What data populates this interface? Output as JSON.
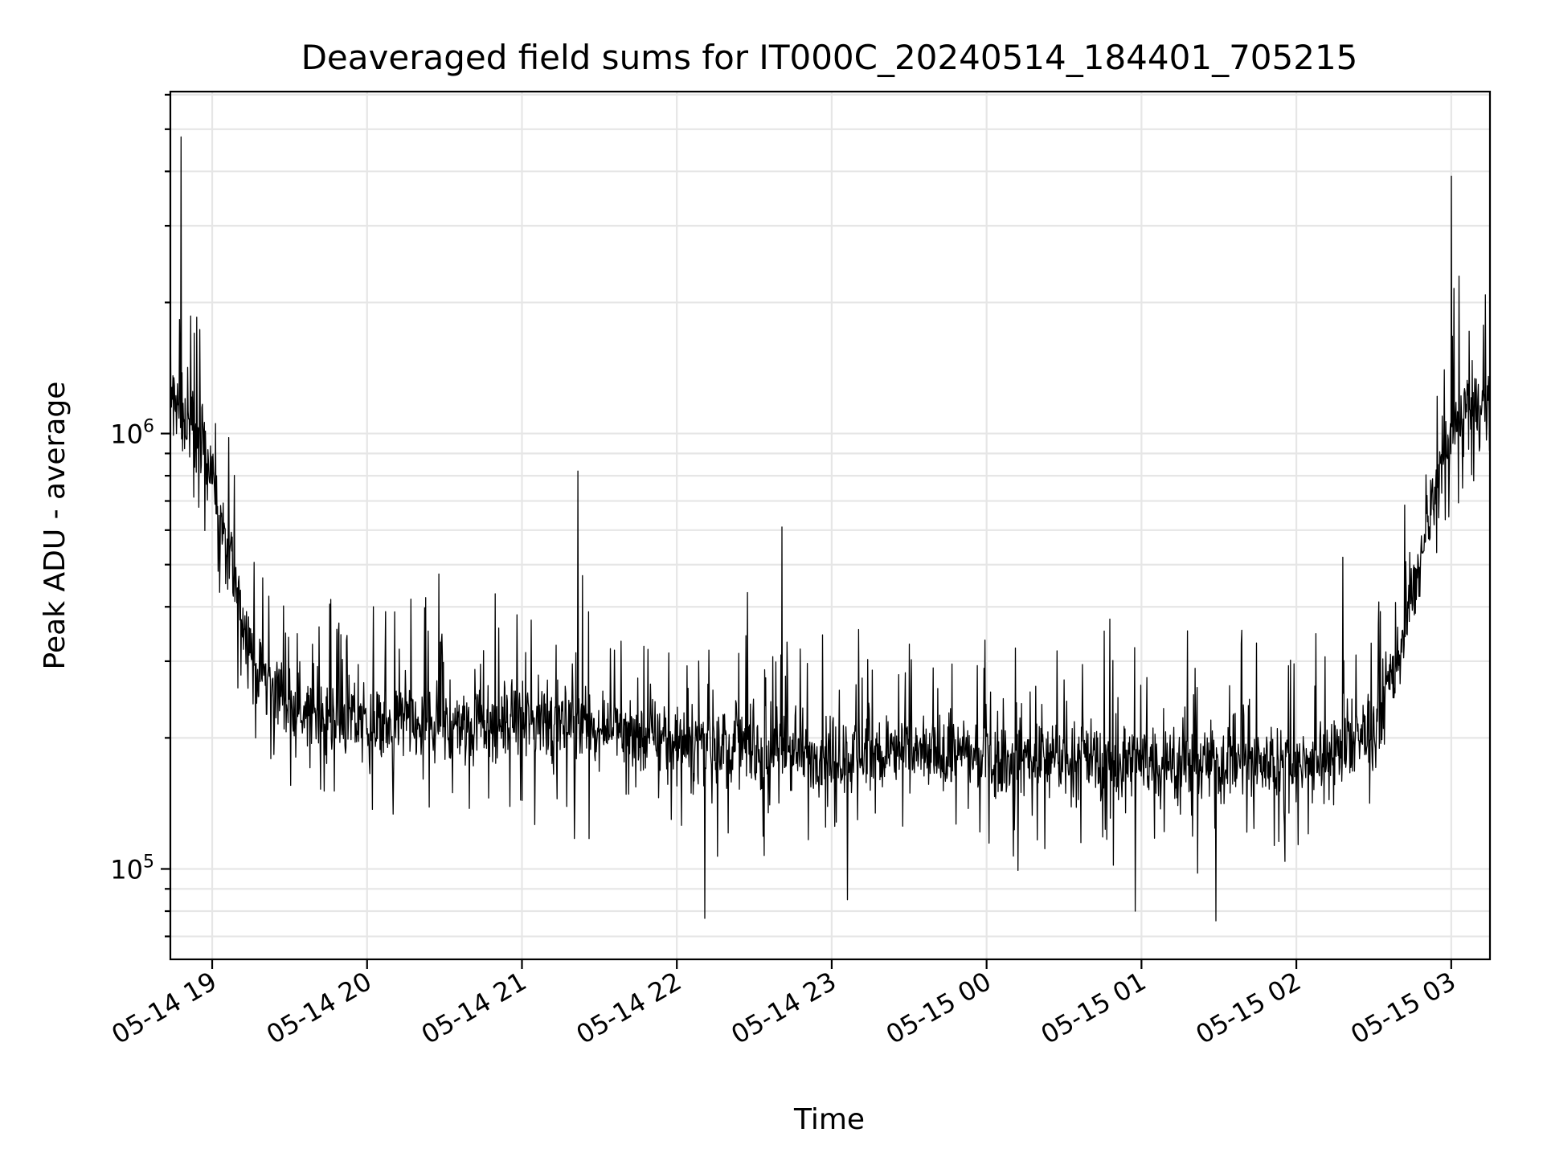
{
  "chart_data": {
    "type": "line",
    "title": "Deaveraged field sums for IT000C_20240514_184401_705215",
    "xlabel": "Time",
    "ylabel": "Peak ADU - average",
    "yscale": "log",
    "grid": true,
    "legend": "none",
    "ylim": [
      62000,
      6100000
    ],
    "xlim_hours": [
      -0.27,
      8.25
    ],
    "x_ticks": [
      {
        "label": "05-14 19",
        "hours": 0
      },
      {
        "label": "05-14 20",
        "hours": 1
      },
      {
        "label": "05-14 21",
        "hours": 2
      },
      {
        "label": "05-14 22",
        "hours": 3
      },
      {
        "label": "05-14 23",
        "hours": 4
      },
      {
        "label": "05-15 00",
        "hours": 5
      },
      {
        "label": "05-15 01",
        "hours": 6
      },
      {
        "label": "05-15 02",
        "hours": 7
      },
      {
        "label": "05-15 03",
        "hours": 8
      }
    ],
    "y_ticks": [
      {
        "base": "10",
        "exp": "5",
        "value": 100000
      },
      {
        "base": "10",
        "exp": "6",
        "value": 1000000
      }
    ],
    "series": [
      {
        "name": "deaveraged field sum",
        "color": "#000000",
        "trend_hours": [
          -0.27,
          -0.15,
          -0.05,
          0.0,
          0.1,
          0.2,
          0.3,
          0.5,
          1.0,
          1.5,
          2.0,
          2.5,
          3.0,
          3.5,
          4.0,
          4.5,
          5.0,
          5.5,
          6.0,
          6.5,
          7.0,
          7.3,
          7.5,
          7.65,
          7.8,
          7.95,
          8.1,
          8.25
        ],
        "trend_values": [
          1200000,
          1050000,
          950000,
          800000,
          520000,
          380000,
          280000,
          240000,
          215000,
          210000,
          220000,
          215000,
          195000,
          190000,
          185000,
          185000,
          180000,
          180000,
          175000,
          175000,
          175000,
          185000,
          210000,
          300000,
          500000,
          900000,
          1150000,
          1150000
        ],
        "spikes": [
          {
            "hours": -0.2,
            "value": 4800000
          },
          {
            "hours": -0.1,
            "value": 1850000
          },
          {
            "hours": 2.36,
            "value": 820000
          },
          {
            "hours": 3.68,
            "value": 610000
          },
          {
            "hours": 7.3,
            "value": 520000
          },
          {
            "hours": 8.0,
            "value": 3900000
          },
          {
            "hours": 8.05,
            "value": 2300000
          }
        ],
        "dips": [
          {
            "hours": 3.18,
            "value": 77000
          },
          {
            "hours": 5.96,
            "value": 80000
          },
          {
            "hours": 6.48,
            "value": 76000
          },
          {
            "hours": 4.1,
            "value": 85000
          }
        ]
      }
    ]
  }
}
